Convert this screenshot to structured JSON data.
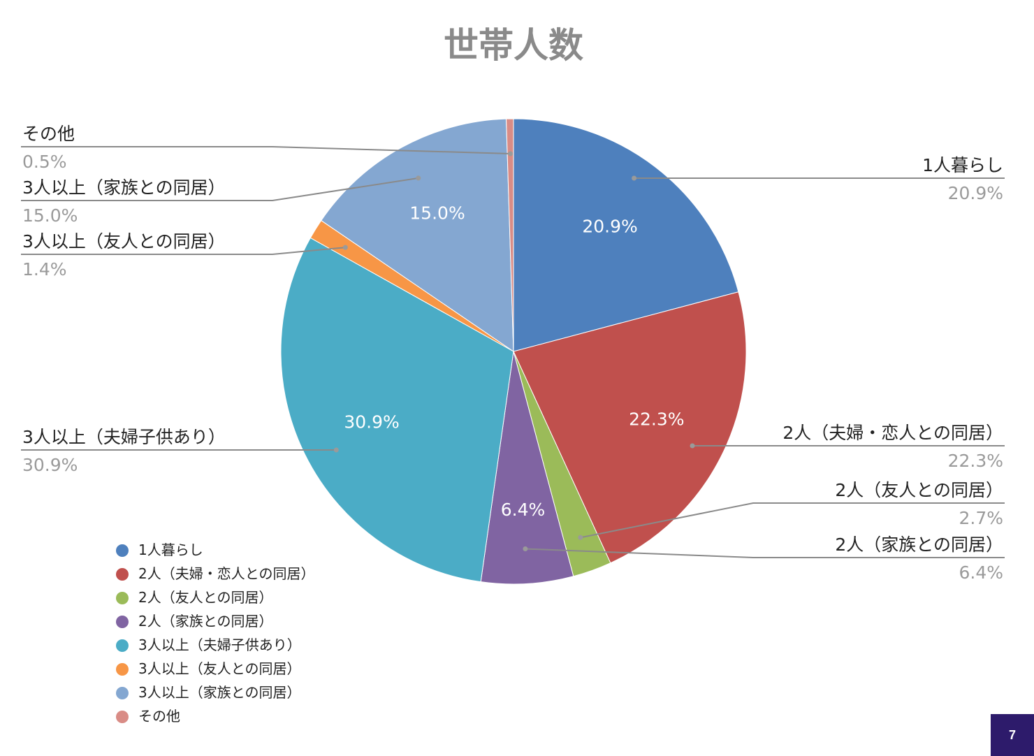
{
  "page_number": "7",
  "chart_data": {
    "type": "pie",
    "title": "世帯人数",
    "categories": [
      "1人暮らし",
      "2人（夫婦・恋人との同居）",
      "2人（友人との同居）",
      "2人（家族との同居）",
      "3人以上（夫婦子供あり）",
      "3人以上（友人との同居）",
      "3人以上（家族との同居）",
      "その他"
    ],
    "values": [
      20.9,
      22.3,
      2.7,
      6.4,
      30.9,
      1.4,
      15.0,
      0.5
    ],
    "value_labels": [
      "20.9%",
      "22.3%",
      "2.7%",
      "6.4%",
      "30.9%",
      "1.4%",
      "15.0%",
      "0.5%"
    ],
    "colors": [
      "#4e80bd",
      "#c0504d",
      "#9bbb59",
      "#8064a2",
      "#4bacc6",
      "#f79646",
      "#84a7d1",
      "#d98c86"
    ],
    "slice_labels_shown": [
      true,
      true,
      false,
      true,
      true,
      false,
      true,
      false
    ],
    "legend_position": "bottom-left",
    "start_angle_deg": 0,
    "direction": "clockwise"
  }
}
